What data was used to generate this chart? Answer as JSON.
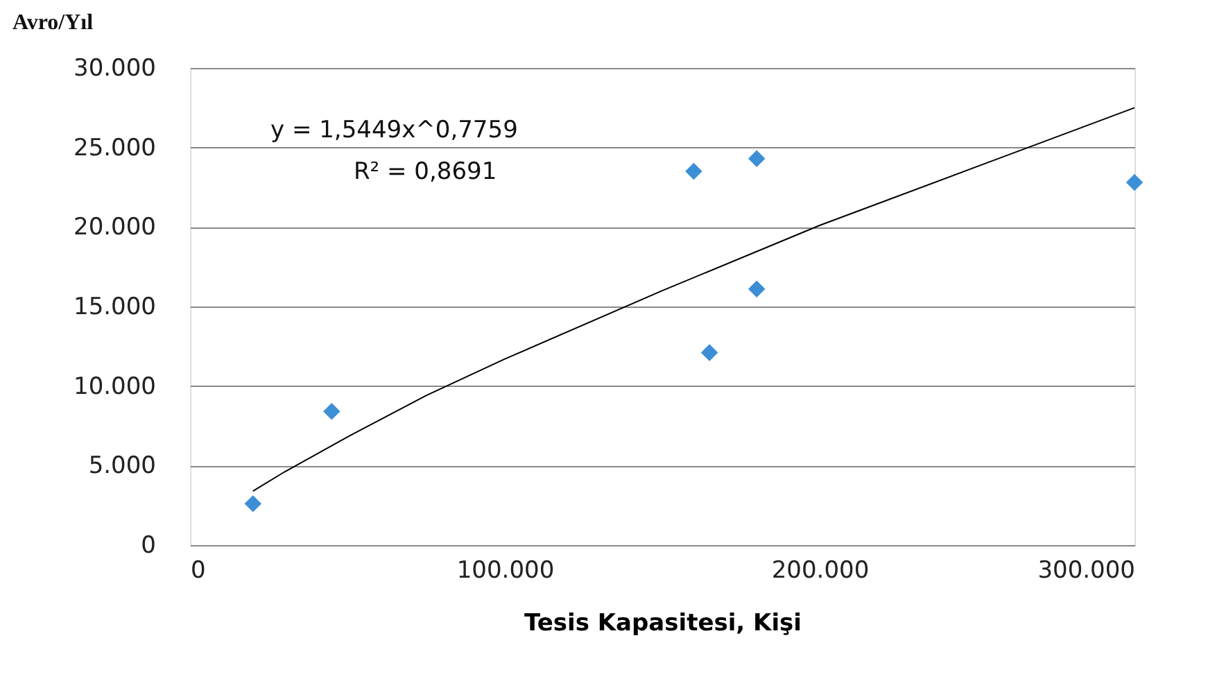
{
  "chart_data": {
    "type": "scatter",
    "ylabel": "Avro/Yıl",
    "xlabel": "Tesis Kapasitesi, Kişi",
    "x": [
      20000,
      45000,
      160000,
      180000,
      165000,
      180000,
      300000
    ],
    "series": [
      {
        "type": "scatter",
        "color": "#3c8fd6",
        "values": [
          2600,
          8400,
          23500,
          24300,
          12100,
          16100,
          22800
        ],
        "marker": "diamond"
      },
      {
        "type": "line",
        "color": "#000000",
        "x": [
          20000,
          30000,
          50000,
          75000,
          100000,
          150000,
          200000,
          250000,
          300000
        ],
        "values": [
          3400,
          4600,
          6800,
          9400,
          11700,
          16000,
          20100,
          23800,
          27500
        ],
        "line_style": "solid"
      }
    ],
    "annotations": [
      "y = 1,5449x^0,7759",
      "R² = 0,8691"
    ],
    "xlim": [
      0,
      300000
    ],
    "ylim": [
      0,
      30000
    ],
    "xticks": [
      0,
      {
        "value": 100000,
        "label": "100.000"
      },
      {
        "value": 200000,
        "label": "200.000"
      },
      {
        "value": 300000,
        "label": "300.000"
      }
    ],
    "yticks": [
      0,
      {
        "value": 5000,
        "label": "5.000"
      },
      {
        "value": 10000,
        "label": "10.000"
      },
      {
        "value": 15000,
        "label": "15.000"
      },
      {
        "value": 20000,
        "label": "20.000"
      },
      {
        "value": 25000,
        "label": "25.000"
      },
      {
        "value": 30000,
        "label": "30.000"
      }
    ],
    "grid": "y"
  }
}
